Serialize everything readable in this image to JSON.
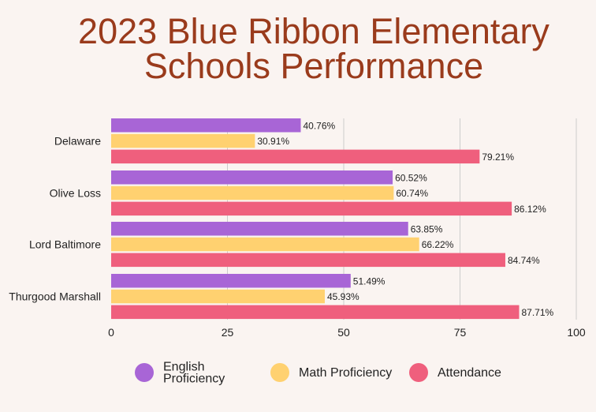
{
  "chart_data": {
    "type": "bar",
    "orientation": "horizontal",
    "title_lines": [
      "2023 Blue Ribbon Elementary",
      "Schools Performance"
    ],
    "categories": [
      "Delaware",
      "Olive Loss",
      "Lord Baltimore",
      "Thurgood Marshall"
    ],
    "series": [
      {
        "name": "English Proficiency",
        "legend_lines": [
          "English",
          "Proficiency"
        ],
        "color": "#a865d6",
        "values": [
          40.76,
          60.52,
          63.85,
          51.49
        ],
        "labels": [
          "40.76%",
          "60.52%",
          "63.85%",
          "51.49%"
        ]
      },
      {
        "name": "Math Proficiency",
        "legend_lines": [
          "Math Proficiency"
        ],
        "color": "#ffd170",
        "values": [
          30.91,
          60.74,
          66.22,
          45.93
        ],
        "labels": [
          "30.91%",
          "60.74%",
          "66.22%",
          "45.93%"
        ]
      },
      {
        "name": "Attendance",
        "legend_lines": [
          "Attendance"
        ],
        "color": "#ef5f7d",
        "values": [
          79.21,
          86.12,
          84.74,
          87.71
        ],
        "labels": [
          "79.21%",
          "86.12%",
          "84.74%",
          "87.71%"
        ]
      }
    ],
    "xlim": [
      0,
      100
    ],
    "xticks": [
      "0",
      "25",
      "50",
      "75",
      "100"
    ],
    "grid": true,
    "legend_position": "bottom"
  }
}
